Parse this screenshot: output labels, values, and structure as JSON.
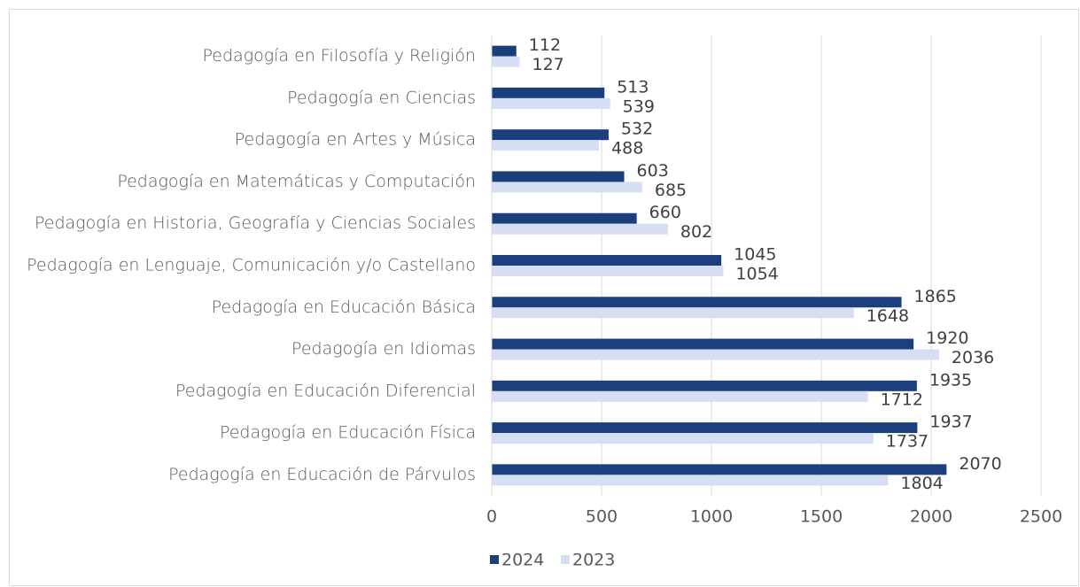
{
  "chart_data": {
    "type": "hbar",
    "categories": [
      "Pedagogía en Filosofía y Religión",
      "Pedagogía en Ciencias",
      "Pedagogía en Artes y Música",
      "Pedagogía en Matemáticas y Computación",
      "Pedagogía en Historia, Geografía y Ciencias Sociales",
      "Pedagogía en Lenguaje, Comunicación y/o Castellano",
      "Pedagogía en Educación Básica",
      "Pedagogía en Idiomas",
      "Pedagogía en Educación Diferencial",
      "Pedagogía en Educación Física",
      "Pedagogía en Educación de Párvulos"
    ],
    "series": [
      {
        "name": "2024",
        "color": "#1b3f7c",
        "values": [
          112,
          513,
          532,
          603,
          660,
          1045,
          1865,
          1920,
          1935,
          1937,
          2070
        ]
      },
      {
        "name": "2023",
        "color": "#d5def3",
        "values": [
          127,
          539,
          488,
          685,
          802,
          1054,
          1648,
          2036,
          1712,
          1737,
          1804
        ]
      }
    ],
    "xlim": [
      0,
      2500
    ],
    "xticks": [
      0,
      500,
      1000,
      1500,
      2000,
      2500
    ],
    "grid": true,
    "legend": "bottom"
  }
}
